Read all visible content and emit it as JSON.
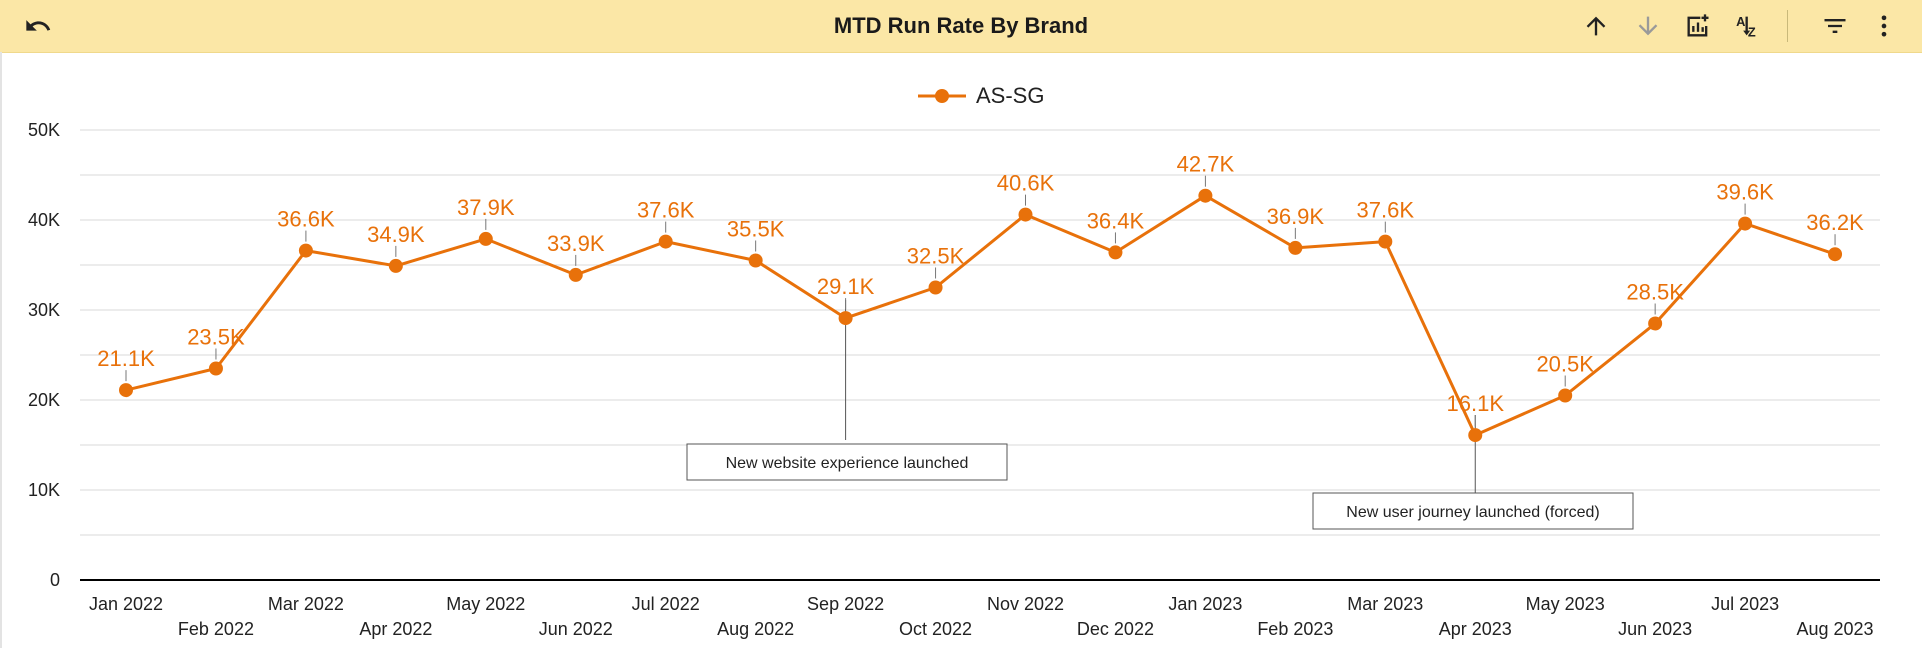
{
  "header": {
    "title": "MTD Run Rate By Brand",
    "icons": [
      "undo-icon",
      "sort-ascending-icon",
      "sort-descending-icon",
      "chart-edit-icon",
      "sort-az-icon",
      "filter-icon",
      "more-vert-icon"
    ]
  },
  "colors": {
    "series": "#e8710a",
    "header_bg": "#fbe7a6",
    "grid": "#d9d9d9",
    "axis": "#000000"
  },
  "chart_data": {
    "type": "line",
    "title": "MTD Run Rate By Brand",
    "categories": [
      "Jan 2022",
      "Feb 2022",
      "Mar 2022",
      "Apr 2022",
      "May 2022",
      "Jun 2022",
      "Jul 2022",
      "Aug 2022",
      "Sep 2022",
      "Oct 2022",
      "Nov 2022",
      "Dec 2022",
      "Jan 2023",
      "Feb 2023",
      "Mar 2023",
      "Apr 2023",
      "May 2023",
      "Jun 2023",
      "Jul 2023",
      "Aug 2023"
    ],
    "series": [
      {
        "name": "AS-SG",
        "values": [
          21100,
          23500,
          36600,
          34900,
          37900,
          33900,
          37600,
          35500,
          29100,
          32500,
          40600,
          36400,
          42700,
          36900,
          37600,
          16100,
          20500,
          28500,
          39600,
          36200
        ],
        "labels": [
          "21.1K",
          "23.5K",
          "36.6K",
          "34.9K",
          "37.9K",
          "33.9K",
          "37.6K",
          "35.5K",
          "29.1K",
          "32.5K",
          "40.6K",
          "36.4K",
          "42.7K",
          "36.9K",
          "37.6K",
          "16.1K",
          "20.5K",
          "28.5K",
          "39.6K",
          "36.2K"
        ]
      }
    ],
    "ylim": [
      0,
      50000
    ],
    "y_ticks": [
      0,
      10000,
      20000,
      30000,
      40000,
      50000
    ],
    "y_tick_labels": [
      "0",
      "10K",
      "20K",
      "30K",
      "40K",
      "50K"
    ],
    "legend": "top-center",
    "grid": true,
    "annotations": [
      {
        "category": "Sep 2022",
        "text": "New website experience launched"
      },
      {
        "category": "Apr 2023",
        "text": "New user journey launched (forced)"
      }
    ]
  }
}
